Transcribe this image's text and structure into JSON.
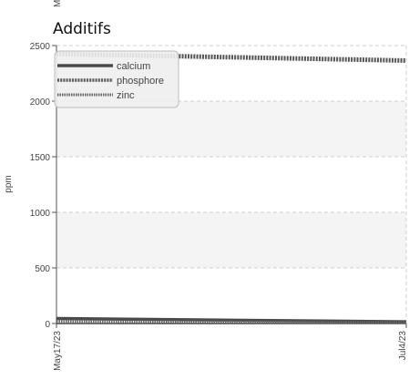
{
  "chart_data": {
    "type": "line",
    "title": "Additifs",
    "ylabel": "ppm",
    "xlabel": "",
    "x": [
      "May17/23",
      "Jul4/23"
    ],
    "ylim": [
      0,
      2500
    ],
    "yticks": [
      0,
      500,
      1000,
      1500,
      2000,
      2500
    ],
    "grid": true,
    "legend": "top-left",
    "series": [
      {
        "name": "calcium",
        "values": [
          45,
          15
        ],
        "color": "#4a4a4a",
        "style": "solid"
      },
      {
        "name": "phosphore",
        "values": [
          2425,
          2365
        ],
        "color": "#555555",
        "style": "dashed-thick"
      },
      {
        "name": "zinc",
        "values": [
          20,
          8
        ],
        "color": "#666666",
        "style": "dashed-thin"
      }
    ]
  }
}
